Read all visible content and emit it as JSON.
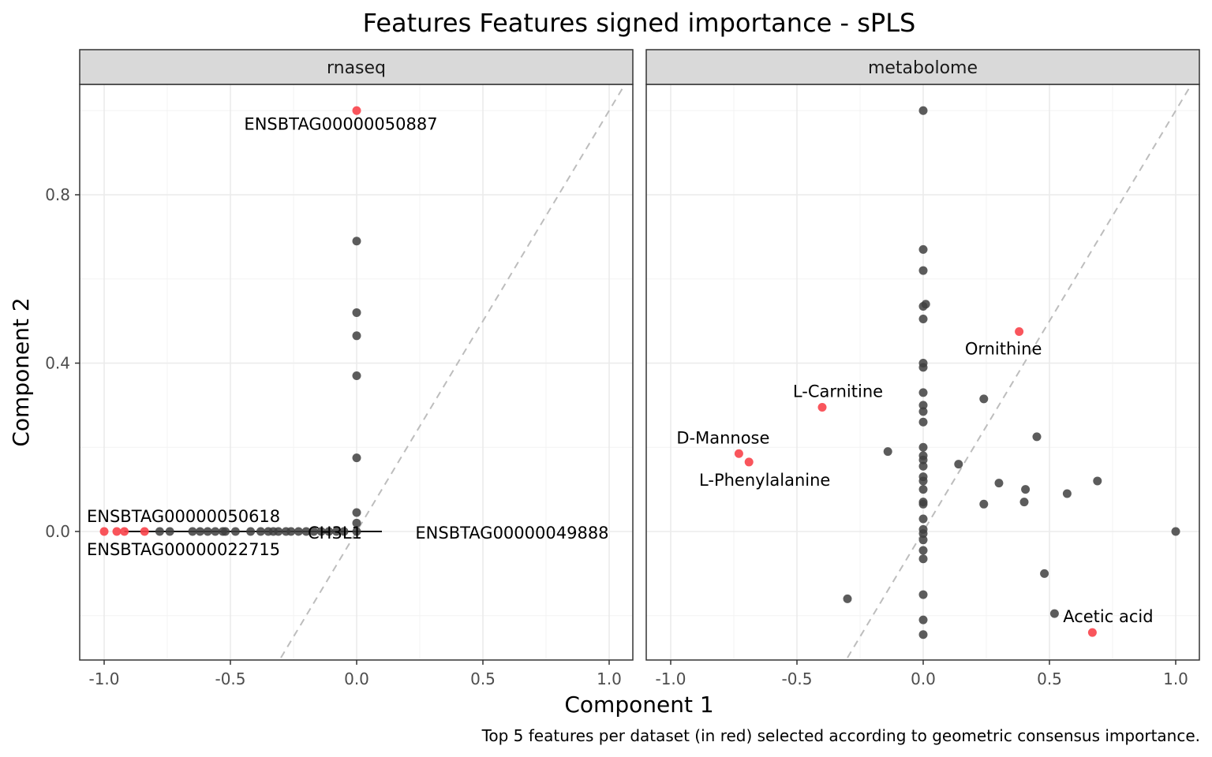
{
  "chart_data": {
    "type": "scatter",
    "title": "Features Features signed importance - sPLS",
    "xlabel": "Component 1",
    "ylabel": "Component 2",
    "caption": "Top 5 features per dataset (in red) selected according to geometric consensus importance.",
    "xlim": [
      -1.1,
      1.1
    ],
    "ylim": [
      -0.3,
      1.06
    ],
    "x_ticks": [
      -1.0,
      -0.5,
      0.0,
      0.5,
      1.0
    ],
    "x_tick_labels": [
      "-1.0",
      "-0.5",
      "0.0",
      "0.5",
      "1.0"
    ],
    "y_ticks": [
      0.0,
      0.4,
      0.8
    ],
    "y_tick_labels": [
      "0.0",
      "0.4",
      "0.8"
    ],
    "grid": true,
    "reference_line": "y = x (dashed)",
    "colors": {
      "selected": "#f8424a",
      "other": "#404040",
      "panel_strip": "#d9d9d9",
      "grid": "#ebebeb",
      "diagonal": "#bdbdbd"
    },
    "panels": [
      {
        "name": "rnaseq",
        "selected": [
          {
            "x": 0.0,
            "y": 1.0,
            "label": "ENSBTAG00000050887"
          },
          {
            "x": -1.0,
            "y": 0.0,
            "label": "ENSBTAG00000050618"
          },
          {
            "x": -0.95,
            "y": 0.0,
            "label": "ENSBTAG00000022715"
          },
          {
            "x": -0.92,
            "y": 0.0,
            "label": ""
          },
          {
            "x": -0.84,
            "y": 0.0,
            "label": ""
          }
        ],
        "other": [
          {
            "x": 0.0,
            "y": 0.69
          },
          {
            "x": 0.0,
            "y": 0.52
          },
          {
            "x": 0.0,
            "y": 0.465
          },
          {
            "x": 0.0,
            "y": 0.37
          },
          {
            "x": 0.0,
            "y": 0.175
          },
          {
            "x": 0.0,
            "y": 0.045
          },
          {
            "x": 0.0,
            "y": 0.02
          },
          {
            "x": 0.0,
            "y": 0.0
          },
          {
            "x": -0.78,
            "y": 0.0
          },
          {
            "x": -0.74,
            "y": 0.0
          },
          {
            "x": -0.65,
            "y": 0.0
          },
          {
            "x": -0.62,
            "y": 0.0
          },
          {
            "x": -0.59,
            "y": 0.0
          },
          {
            "x": -0.56,
            "y": 0.0
          },
          {
            "x": -0.53,
            "y": 0.0
          },
          {
            "x": -0.52,
            "y": 0.0
          },
          {
            "x": -0.48,
            "y": 0.0
          },
          {
            "x": -0.42,
            "y": 0.0
          },
          {
            "x": -0.38,
            "y": 0.0
          },
          {
            "x": -0.35,
            "y": 0.0
          },
          {
            "x": -0.33,
            "y": 0.0
          },
          {
            "x": -0.31,
            "y": 0.0
          },
          {
            "x": -0.28,
            "y": 0.0
          },
          {
            "x": -0.26,
            "y": 0.0
          },
          {
            "x": -0.23,
            "y": 0.0
          },
          {
            "x": -0.2,
            "y": 0.0
          },
          {
            "x": -0.17,
            "y": 0.0
          },
          {
            "x": -0.14,
            "y": 0.0
          },
          {
            "x": -0.11,
            "y": 0.0
          },
          {
            "x": -0.08,
            "y": 0.0
          },
          {
            "x": -0.05,
            "y": 0.0
          }
        ],
        "text_labels": [
          {
            "x": 0.0,
            "y": 0.0,
            "label": "CH3L1"
          },
          {
            "x": 0.12,
            "y": 0.0,
            "label": "ENSBTAG00000049888"
          }
        ]
      },
      {
        "name": "metabolome",
        "selected": [
          {
            "x": 0.38,
            "y": 0.475,
            "label": "Ornithine"
          },
          {
            "x": -0.4,
            "y": 0.295,
            "label": "L-Carnitine"
          },
          {
            "x": -0.73,
            "y": 0.185,
            "label": "D-Mannose"
          },
          {
            "x": -0.69,
            "y": 0.165,
            "label": "L-Phenylalanine"
          },
          {
            "x": 0.67,
            "y": -0.24,
            "label": "Acetic acid"
          }
        ],
        "other": [
          {
            "x": 0.0,
            "y": 1.0
          },
          {
            "x": 0.0,
            "y": 0.67
          },
          {
            "x": 0.0,
            "y": 0.62
          },
          {
            "x": 0.0,
            "y": 0.535
          },
          {
            "x": 0.01,
            "y": 0.54
          },
          {
            "x": 0.0,
            "y": 0.505
          },
          {
            "x": 0.0,
            "y": 0.4
          },
          {
            "x": 0.0,
            "y": 0.39
          },
          {
            "x": 0.0,
            "y": 0.33
          },
          {
            "x": 0.0,
            "y": 0.3
          },
          {
            "x": 0.0,
            "y": 0.285
          },
          {
            "x": 0.0,
            "y": 0.26
          },
          {
            "x": 0.0,
            "y": 0.2
          },
          {
            "x": 0.0,
            "y": 0.18
          },
          {
            "x": 0.0,
            "y": 0.17
          },
          {
            "x": 0.0,
            "y": 0.155
          },
          {
            "x": 0.0,
            "y": 0.13
          },
          {
            "x": 0.0,
            "y": 0.12
          },
          {
            "x": 0.0,
            "y": 0.1
          },
          {
            "x": 0.0,
            "y": 0.07
          },
          {
            "x": 0.0,
            "y": 0.065
          },
          {
            "x": 0.0,
            "y": 0.03
          },
          {
            "x": 0.0,
            "y": 0.005
          },
          {
            "x": 0.0,
            "y": -0.005
          },
          {
            "x": 0.0,
            "y": -0.02
          },
          {
            "x": 0.0,
            "y": -0.045
          },
          {
            "x": 0.0,
            "y": -0.065
          },
          {
            "x": 0.0,
            "y": -0.15
          },
          {
            "x": 0.0,
            "y": -0.21
          },
          {
            "x": 0.0,
            "y": -0.245
          },
          {
            "x": -0.3,
            "y": -0.16
          },
          {
            "x": -0.14,
            "y": 0.19
          },
          {
            "x": 0.14,
            "y": 0.16
          },
          {
            "x": 0.24,
            "y": 0.315
          },
          {
            "x": 0.24,
            "y": 0.065
          },
          {
            "x": 0.3,
            "y": 0.115
          },
          {
            "x": 0.4,
            "y": 0.07
          },
          {
            "x": 0.405,
            "y": 0.1
          },
          {
            "x": 0.45,
            "y": 0.225
          },
          {
            "x": 0.48,
            "y": -0.1
          },
          {
            "x": 0.52,
            "y": -0.195
          },
          {
            "x": 0.57,
            "y": 0.09
          },
          {
            "x": 0.69,
            "y": 0.12
          },
          {
            "x": 1.0,
            "y": 0.0
          }
        ],
        "text_labels": []
      }
    ]
  }
}
